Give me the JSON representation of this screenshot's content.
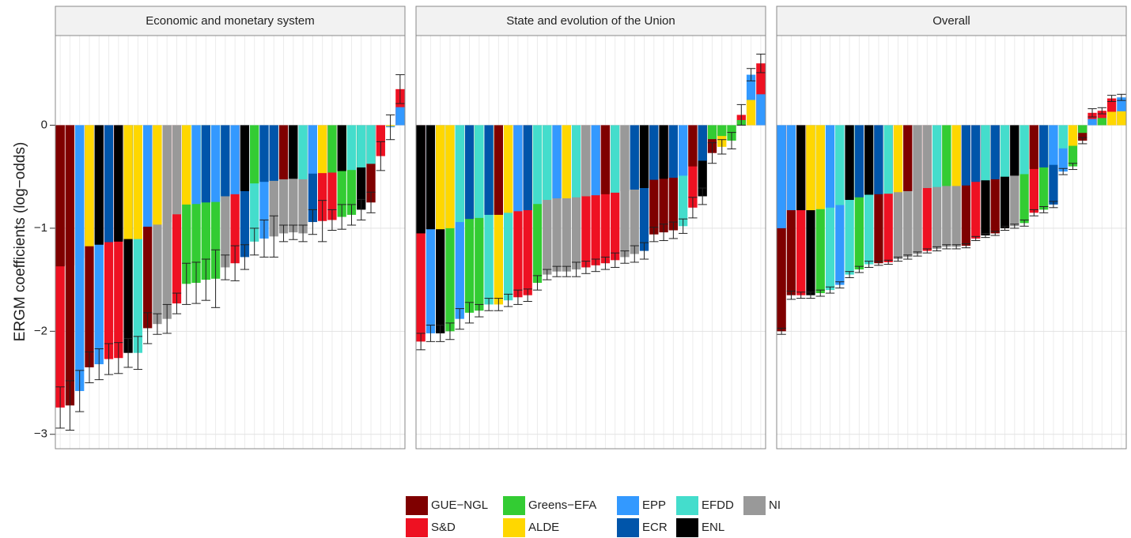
{
  "chart_data": {
    "type": "bar",
    "y_label": "ERGM coefficients (log−odds)",
    "ylim": [
      -3.14,
      0.87
    ],
    "yticks": [
      {
        "value": -3,
        "label": "−3"
      },
      {
        "value": -2,
        "label": "−2"
      },
      {
        "value": -1,
        "label": "−1"
      },
      0
    ],
    "grid": true,
    "legend": [
      {
        "name": "GUE−NGL",
        "color": "#7f0000"
      },
      {
        "name": "S&D",
        "color": "#ee1122"
      },
      {
        "name": "Greens−EFA",
        "color": "#33cc33"
      },
      {
        "name": "ALDE",
        "color": "#ffd700"
      },
      {
        "name": "EPP",
        "color": "#3399ff"
      },
      {
        "name": "ECR",
        "color": "#0055aa"
      },
      {
        "name": "EFDD",
        "color": "#44ddcc"
      },
      {
        "name": "ENL",
        "color": "#000000"
      },
      {
        "name": "NI",
        "color": "#999999"
      }
    ],
    "facets": [
      {
        "title": "Economic and monetary system",
        "values": [
          -2.74,
          -2.72,
          -2.58,
          -2.35,
          -2.32,
          -2.27,
          -2.26,
          -2.21,
          -2.21,
          -1.97,
          -1.93,
          -1.88,
          -1.73,
          -1.54,
          -1.53,
          -1.5,
          -1.49,
          -1.38,
          -1.34,
          -1.28,
          -1.13,
          -1.1,
          -1.08,
          -1.05,
          -1.04,
          -1.05,
          -0.94,
          -0.93,
          -0.92,
          -0.89,
          -0.87,
          -0.82,
          -0.75,
          -0.3,
          -0.02,
          0.35
        ],
        "errors": [
          0.2,
          0.24,
          0.2,
          0.15,
          0.15,
          0.15,
          0.15,
          0.14,
          0.16,
          0.15,
          0.1,
          0.14,
          0.1,
          0.2,
          0.2,
          0.2,
          0.28,
          0.12,
          0.17,
          0.12,
          0.13,
          0.18,
          0.2,
          0.08,
          0.07,
          0.08,
          0.12,
          0.2,
          0.1,
          0.12,
          0.1,
          0.1,
          0.1,
          0.14,
          0.12,
          0.14
        ],
        "colors": [
          [
            "#7f0000",
            "#ee1122"
          ],
          [
            "#7f0000",
            "#7f0000"
          ],
          [
            "#3399ff",
            "#3399ff"
          ],
          [
            "#ffd700",
            "#7f0000"
          ],
          [
            "#000000",
            "#3399ff"
          ],
          [
            "#0055aa",
            "#ee1122"
          ],
          [
            "#000000",
            "#ee1122"
          ],
          [
            "#ffd700",
            "#000000"
          ],
          [
            "#ffd700",
            "#44ddcc"
          ],
          [
            "#3399ff",
            "#7f0000"
          ],
          [
            "#ffd700",
            "#999999"
          ],
          [
            "#999999",
            "#999999"
          ],
          [
            "#999999",
            "#ee1122"
          ],
          [
            "#ffd700",
            "#33cc33"
          ],
          [
            "#3399ff",
            "#33cc33"
          ],
          [
            "#0055aa",
            "#33cc33"
          ],
          [
            "#3399ff",
            "#33cc33"
          ],
          [
            "#0055aa",
            "#999999"
          ],
          [
            "#3399ff",
            "#ee1122"
          ],
          [
            "#000000",
            "#0055aa"
          ],
          [
            "#33cc33",
            "#44ddcc"
          ],
          [
            "#0055aa",
            "#3399ff"
          ],
          [
            "#0055aa",
            "#999999"
          ],
          [
            "#7f0000",
            "#999999"
          ],
          [
            "#000000",
            "#999999"
          ],
          [
            "#44ddcc",
            "#999999"
          ],
          [
            "#3399ff",
            "#0055aa"
          ],
          [
            "#ffd700",
            "#ee1122"
          ],
          [
            "#33cc33",
            "#ee1122"
          ],
          [
            "#000000",
            "#33cc33"
          ],
          [
            "#44ddcc",
            "#33cc33"
          ],
          [
            "#44ddcc",
            "#000000"
          ],
          [
            "#44ddcc",
            "#7f0000"
          ],
          [
            "#ee1122",
            "#ee1122"
          ],
          [
            "#ffd700",
            "#3399ff"
          ],
          [
            "#3399ff",
            "#ee1122"
          ]
        ]
      },
      {
        "title": "State and evolution of the Union",
        "values": [
          -2.1,
          -2.02,
          -2.02,
          -2.0,
          -1.88,
          -1.82,
          -1.8,
          -1.74,
          -1.74,
          -1.7,
          -1.67,
          -1.65,
          -1.53,
          -1.45,
          -1.42,
          -1.42,
          -1.4,
          -1.38,
          -1.36,
          -1.34,
          -1.31,
          -1.28,
          -1.25,
          -1.22,
          -1.06,
          -1.04,
          -1.02,
          -0.98,
          -0.8,
          -0.69,
          -0.27,
          -0.21,
          -0.15,
          0.1,
          0.49,
          0.6
        ],
        "errors": [
          0.08,
          0.08,
          0.08,
          0.08,
          0.1,
          0.1,
          0.06,
          0.06,
          0.06,
          0.06,
          0.07,
          0.06,
          0.07,
          0.05,
          0.05,
          0.05,
          0.07,
          0.06,
          0.06,
          0.06,
          0.07,
          0.06,
          0.08,
          0.08,
          0.07,
          0.08,
          0.08,
          0.07,
          0.1,
          0.08,
          0.1,
          0.07,
          0.08,
          0.1,
          0.06,
          0.09
        ],
        "colors": [
          [
            "#000000",
            "#ee1122"
          ],
          [
            "#000000",
            "#3399ff"
          ],
          [
            "#ffd700",
            "#000000"
          ],
          [
            "#ffd700",
            "#33cc33"
          ],
          [
            "#44ddcc",
            "#3399ff"
          ],
          [
            "#0055aa",
            "#33cc33"
          ],
          [
            "#44ddcc",
            "#33cc33"
          ],
          [
            "#0055aa",
            "#44ddcc"
          ],
          [
            "#7f0000",
            "#ffd700"
          ],
          [
            "#ffd700",
            "#44ddcc"
          ],
          [
            "#3399ff",
            "#ee1122"
          ],
          [
            "#0055aa",
            "#ee1122"
          ],
          [
            "#44ddcc",
            "#33cc33"
          ],
          [
            "#44ddcc",
            "#999999"
          ],
          [
            "#3399ff",
            "#999999"
          ],
          [
            "#ffd700",
            "#999999"
          ],
          [
            "#44ddcc",
            "#999999"
          ],
          [
            "#999999",
            "#ee1122"
          ],
          [
            "#3399ff",
            "#ee1122"
          ],
          [
            "#7f0000",
            "#ee1122"
          ],
          [
            "#44ddcc",
            "#ee1122"
          ],
          [
            "#999999",
            "#999999"
          ],
          [
            "#0055aa",
            "#999999"
          ],
          [
            "#000000",
            "#0055aa"
          ],
          [
            "#0055aa",
            "#7f0000"
          ],
          [
            "#000000",
            "#7f0000"
          ],
          [
            "#0055aa",
            "#7f0000"
          ],
          [
            "#3399ff",
            "#44ddcc"
          ],
          [
            "#7f0000",
            "#ee1122"
          ],
          [
            "#0055aa",
            "#000000"
          ],
          [
            "#33cc33",
            "#7f0000"
          ],
          [
            "#33cc33",
            "#ffd700"
          ],
          [
            "#33cc33",
            "#33cc33"
          ],
          [
            "#33cc33",
            "#ee1122"
          ],
          [
            "#ffd700",
            "#3399ff"
          ],
          [
            "#3399ff",
            "#ee1122"
          ]
        ]
      },
      {
        "title": "Overall",
        "values": [
          -2.0,
          -1.65,
          -1.65,
          -1.65,
          -1.63,
          -1.6,
          -1.55,
          -1.45,
          -1.4,
          -1.35,
          -1.34,
          -1.33,
          -1.3,
          -1.28,
          -1.25,
          -1.22,
          -1.2,
          -1.18,
          -1.18,
          -1.17,
          -1.1,
          -1.07,
          -1.05,
          -1.0,
          -0.98,
          -0.95,
          -0.85,
          -0.82,
          -0.77,
          -0.45,
          -0.4,
          -0.15,
          0.12,
          0.14,
          0.26,
          0.27
        ],
        "errors": [
          0.03,
          0.04,
          0.03,
          0.03,
          0.03,
          0.03,
          0.03,
          0.03,
          0.03,
          0.03,
          0.02,
          0.02,
          0.02,
          0.02,
          0.02,
          0.02,
          0.02,
          0.02,
          0.02,
          0.02,
          0.02,
          0.02,
          0.02,
          0.02,
          0.02,
          0.03,
          0.03,
          0.03,
          0.03,
          0.03,
          0.03,
          0.03,
          0.04,
          0.03,
          0.03,
          0.03
        ],
        "colors": [
          [
            "#3399ff",
            "#7f0000"
          ],
          [
            "#3399ff",
            "#7f0000"
          ],
          [
            "#000000",
            "#ee1122"
          ],
          [
            "#ffd700",
            "#000000"
          ],
          [
            "#ffd700",
            "#33cc33"
          ],
          [
            "#3399ff",
            "#44ddcc"
          ],
          [
            "#44ddcc",
            "#3399ff"
          ],
          [
            "#000000",
            "#44ddcc"
          ],
          [
            "#0055aa",
            "#33cc33"
          ],
          [
            "#000000",
            "#44ddcc"
          ],
          [
            "#0055aa",
            "#7f0000"
          ],
          [
            "#44ddcc",
            "#ee1122"
          ],
          [
            "#ffd700",
            "#999999"
          ],
          [
            "#7f0000",
            "#999999"
          ],
          [
            "#999999",
            "#999999"
          ],
          [
            "#999999",
            "#ee1122"
          ],
          [
            "#44ddcc",
            "#999999"
          ],
          [
            "#33cc33",
            "#999999"
          ],
          [
            "#ffd700",
            "#999999"
          ],
          [
            "#0055aa",
            "#7f0000"
          ],
          [
            "#0055aa",
            "#ee1122"
          ],
          [
            "#44ddcc",
            "#000000"
          ],
          [
            "#0055aa",
            "#7f0000"
          ],
          [
            "#44ddcc",
            "#000000"
          ],
          [
            "#000000",
            "#999999"
          ],
          [
            "#44ddcc",
            "#33cc33"
          ],
          [
            "#7f0000",
            "#ee1122"
          ],
          [
            "#0055aa",
            "#33cc33"
          ],
          [
            "#3399ff",
            "#0055aa"
          ],
          [
            "#44ddcc",
            "#3399ff"
          ],
          [
            "#ffd700",
            "#33cc33"
          ],
          [
            "#33cc33",
            "#7f0000"
          ],
          [
            "#3399ff",
            "#ee1122"
          ],
          [
            "#33cc33",
            "#ee1122"
          ],
          [
            "#ffd700",
            "#ee1122"
          ],
          [
            "#ffd700",
            "#3399ff"
          ]
        ]
      }
    ]
  }
}
